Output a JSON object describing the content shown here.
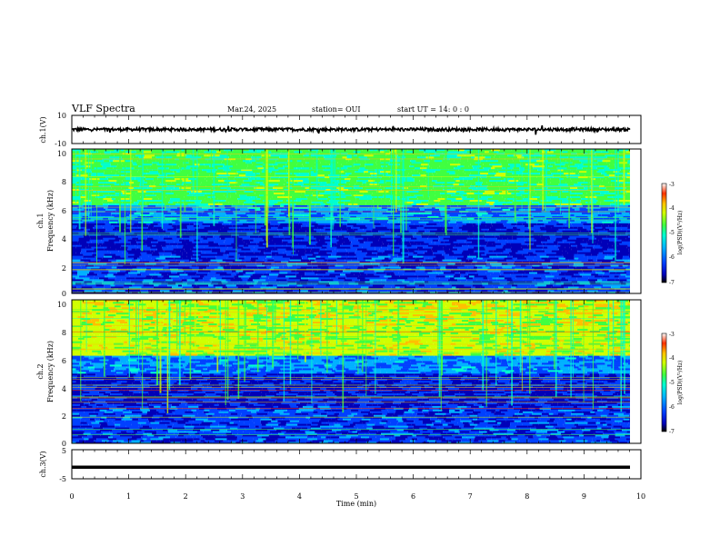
{
  "header": {
    "title": "VLF Spectra",
    "date": "Mar.24, 2025",
    "station": "station= OUI",
    "start": "start  UT =   14: 0  : 0"
  },
  "colors": {
    "colormap": [
      "#000000",
      "#0000b8",
      "#0040ff",
      "#00b0ff",
      "#00ffd0",
      "#40ff40",
      "#d0ff00",
      "#ffc000",
      "#ff3000",
      "#ffffff"
    ]
  },
  "chart_data": [
    {
      "type": "line",
      "panel": "ch1-waveform",
      "ylabel": "ch.1(V)",
      "yticks": [
        "10",
        "-10"
      ],
      "ylim": [
        -10,
        10
      ],
      "xlim": [
        0,
        10
      ],
      "baseline": 0,
      "description_values": {
        "approx_level_v": 0
      }
    },
    {
      "type": "heatmap",
      "panel": "ch1-spectrogram",
      "ylabel": "Frequency (kHz)",
      "channel_label": "ch.1",
      "yticks": [
        "0",
        "2",
        "4",
        "6",
        "8",
        "10"
      ],
      "ylim": [
        0,
        10
      ],
      "xlim": [
        0,
        10
      ],
      "colorbar": {
        "label": "log(PSD)(V²/Hz)",
        "ticks": [
          "-3",
          "-4",
          "-5",
          "-6",
          "-7"
        ],
        "range": [
          -7,
          -3
        ]
      }
    },
    {
      "type": "heatmap",
      "panel": "ch2-spectrogram",
      "ylabel": "Frequency (kHz)",
      "channel_label": "ch.2",
      "yticks": [
        "0",
        "2",
        "4",
        "6",
        "8",
        "10"
      ],
      "ylim": [
        0,
        10
      ],
      "xlim": [
        0,
        10
      ],
      "colorbar": {
        "label": "log(PSD)(V²/Hz)",
        "ticks": [
          "-3",
          "-4",
          "-5",
          "-6",
          "-7"
        ],
        "range": [
          -7,
          -3
        ]
      }
    },
    {
      "type": "line",
      "panel": "ch3-waveform",
      "ylabel": "ch.3(V)",
      "yticks": [
        "5",
        "-5"
      ],
      "ylim": [
        -5,
        5
      ],
      "xlim": [
        0,
        10
      ],
      "constant_value": -1
    }
  ],
  "xaxis": {
    "label": "Time (min)",
    "ticks": [
      "0",
      "1",
      "2",
      "3",
      "4",
      "5",
      "6",
      "7",
      "8",
      "9",
      "10"
    ]
  }
}
